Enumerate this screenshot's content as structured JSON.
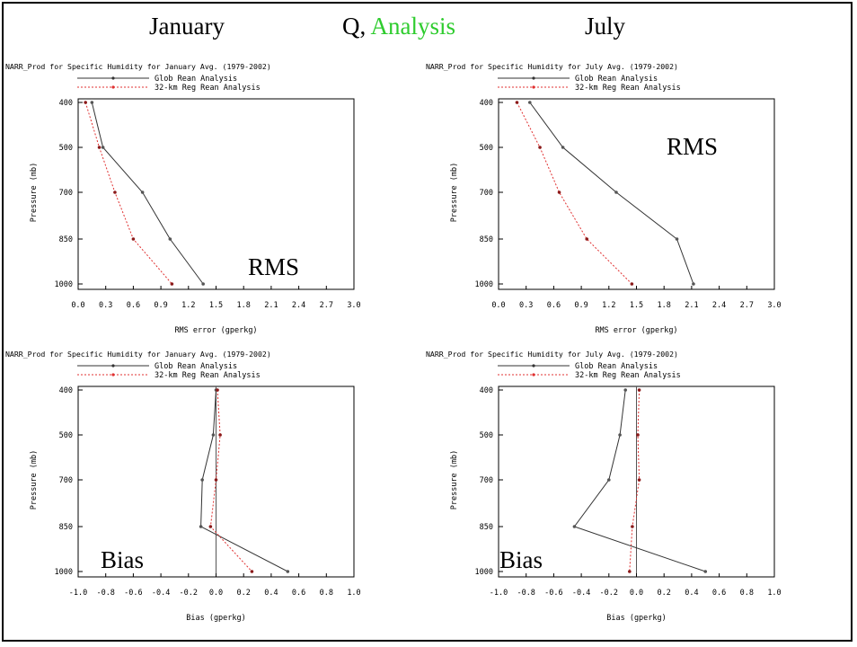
{
  "header": {
    "left": "January",
    "center_prefix": "Q, ",
    "center_highlight": "Analysis",
    "right": "July"
  },
  "colors": {
    "glob": "#333333",
    "regional": "#e03030",
    "highlight": "#2ecc2e"
  },
  "chart_data": [
    {
      "type": "line",
      "title": "NARR_Prod for Specific Humidity for January Avg. (1979-2002)",
      "xlabel": "RMS error (gperkg)",
      "ylabel": "Pressure (mb)",
      "overlay": "RMS",
      "xlim": [
        0.0,
        3.0
      ],
      "xticks": [
        "0.0",
        "0.3",
        "0.6",
        "0.9",
        "1.2",
        "1.5",
        "1.8",
        "2.1",
        "2.4",
        "2.7",
        "3.0"
      ],
      "pressure_levels": [
        "400",
        "500",
        "700",
        "850",
        "1000"
      ],
      "series": [
        {
          "name": "Glob Rean Analysis",
          "values": [
            0.15,
            0.27,
            0.7,
            1.0,
            1.36
          ]
        },
        {
          "name": "32-km Reg Rean Analysis",
          "values": [
            0.08,
            0.23,
            0.4,
            0.6,
            1.02
          ]
        }
      ]
    },
    {
      "type": "line",
      "title": "NARR_Prod for Specific Humidity for July Avg. (1979-2002)",
      "xlabel": "RMS error (gperkg)",
      "ylabel": "Pressure (mb)",
      "overlay": "RMS",
      "xlim": [
        0.0,
        3.0
      ],
      "xticks": [
        "0.0",
        "0.3",
        "0.6",
        "0.9",
        "1.2",
        "1.5",
        "1.8",
        "2.1",
        "2.4",
        "2.7",
        "3.0"
      ],
      "pressure_levels": [
        "400",
        "500",
        "700",
        "850",
        "1000"
      ],
      "series": [
        {
          "name": "Glob Rean Analysis",
          "values": [
            0.34,
            0.7,
            1.28,
            1.94,
            2.12
          ]
        },
        {
          "name": "32-km Reg Rean Analysis",
          "values": [
            0.2,
            0.45,
            0.66,
            0.96,
            1.45
          ]
        }
      ]
    },
    {
      "type": "line",
      "title": "NARR_Prod for Specific Humidity for January Avg. (1979-2002)",
      "xlabel": "Bias (gperkg)",
      "ylabel": "Pressure (mb)",
      "overlay": "Bias",
      "xlim": [
        -1.0,
        1.0
      ],
      "xticks": [
        "-1.0",
        "-0.8",
        "-0.6",
        "-0.4",
        "-0.2",
        "0.0",
        "0.2",
        "0.4",
        "0.6",
        "0.8",
        "1.0"
      ],
      "pressure_levels": [
        "400",
        "500",
        "700",
        "850",
        "1000"
      ],
      "series": [
        {
          "name": "Glob Rean Analysis",
          "values": [
            0.0,
            -0.02,
            -0.1,
            -0.11,
            0.52
          ]
        },
        {
          "name": "32-km Reg Rean Analysis",
          "values": [
            0.01,
            0.03,
            0.0,
            -0.04,
            0.26
          ]
        }
      ]
    },
    {
      "type": "line",
      "title": "NARR_Prod for Specific Humidity for July Avg. (1979-2002)",
      "xlabel": "Bias (gperkg)",
      "ylabel": "Pressure (mb)",
      "overlay": "Bias",
      "xlim": [
        -1.0,
        1.0
      ],
      "xticks": [
        "-1.0",
        "-0.8",
        "-0.6",
        "-0.4",
        "-0.2",
        "0.0",
        "0.2",
        "0.4",
        "0.6",
        "0.8",
        "1.0"
      ],
      "pressure_levels": [
        "400",
        "500",
        "700",
        "850",
        "1000"
      ],
      "series": [
        {
          "name": "Glob Rean Analysis",
          "values": [
            -0.08,
            -0.12,
            -0.2,
            -0.45,
            0.5
          ]
        },
        {
          "name": "32-km Reg Rean Analysis",
          "values": [
            0.02,
            0.01,
            0.02,
            -0.03,
            -0.05
          ]
        }
      ]
    }
  ]
}
